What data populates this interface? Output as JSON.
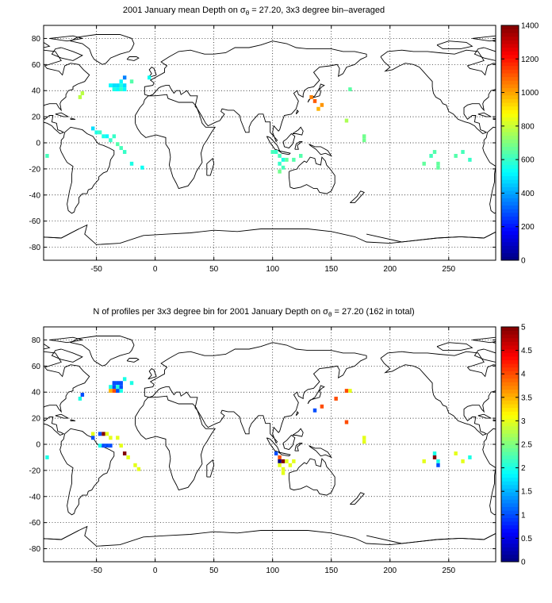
{
  "chart_data": [
    {
      "type": "heatmap",
      "title_prefix": "2001 January mean Depth on ",
      "title_sigma": "σ",
      "title_sub": "θ",
      "title_suffix": " = 27.20, 3x3 degree bin–averaged",
      "xlim": [
        -95,
        290
      ],
      "ylim": [
        -90,
        90
      ],
      "xticks": [
        "-50",
        "0",
        "50",
        "100",
        "150",
        "200",
        "250"
      ],
      "yticks": [
        "80",
        "60",
        "40",
        "20",
        "0",
        "-20",
        "-40",
        "-60",
        "-80"
      ],
      "grid": true,
      "bin_size_deg": 3,
      "colorbar": {
        "min": 0,
        "max": 1400,
        "ticks": [
          "1400",
          "1200",
          "1000",
          "800",
          "600",
          "400",
          "200",
          "0"
        ]
      },
      "bins": [
        {
          "lon": -92,
          "lat": -10,
          "value": 620
        },
        {
          "lon": -64,
          "lat": 35,
          "value": 780
        },
        {
          "lon": -62,
          "lat": 38,
          "value": 780
        },
        {
          "lon": -38,
          "lat": 44,
          "value": 520
        },
        {
          "lon": -35,
          "lat": 44,
          "value": 480
        },
        {
          "lon": -35,
          "lat": 41,
          "value": 560
        },
        {
          "lon": -32,
          "lat": 44,
          "value": 480
        },
        {
          "lon": -32,
          "lat": 41,
          "value": 520
        },
        {
          "lon": -29,
          "lat": 47,
          "value": 520
        },
        {
          "lon": -29,
          "lat": 44,
          "value": 560
        },
        {
          "lon": -29,
          "lat": 41,
          "value": 600
        },
        {
          "lon": -26,
          "lat": 50,
          "value": 350
        },
        {
          "lon": -26,
          "lat": 44,
          "value": 480
        },
        {
          "lon": -26,
          "lat": 41,
          "value": 520
        },
        {
          "lon": -20,
          "lat": 47,
          "value": 640
        },
        {
          "lon": -5,
          "lat": 50,
          "value": 540
        },
        {
          "lon": -53,
          "lat": 11,
          "value": 480
        },
        {
          "lon": -50,
          "lat": 8,
          "value": 560
        },
        {
          "lon": -47,
          "lat": 8,
          "value": 600
        },
        {
          "lon": -44,
          "lat": 5,
          "value": 560
        },
        {
          "lon": -41,
          "lat": 5,
          "value": 520
        },
        {
          "lon": -38,
          "lat": 2,
          "value": 600
        },
        {
          "lon": -35,
          "lat": 5,
          "value": 600
        },
        {
          "lon": -32,
          "lat": -1,
          "value": 640
        },
        {
          "lon": -29,
          "lat": -4,
          "value": 620
        },
        {
          "lon": -26,
          "lat": -7,
          "value": 600
        },
        {
          "lon": -20,
          "lat": -16,
          "value": 560
        },
        {
          "lon": -11,
          "lat": -19,
          "value": 540
        },
        {
          "lon": 133,
          "lat": 35,
          "value": 1050
        },
        {
          "lon": 136,
          "lat": 32,
          "value": 1100
        },
        {
          "lon": 139,
          "lat": 26,
          "value": 980
        },
        {
          "lon": 142,
          "lat": 29,
          "value": 1020
        },
        {
          "lon": 166,
          "lat": 41,
          "value": 650
        },
        {
          "lon": 163,
          "lat": 17,
          "value": 760
        },
        {
          "lon": 178,
          "lat": 5,
          "value": 680
        },
        {
          "lon": 178,
          "lat": 2,
          "value": 680
        },
        {
          "lon": 100,
          "lat": -7,
          "value": 620
        },
        {
          "lon": 103,
          "lat": -7,
          "value": 600
        },
        {
          "lon": 106,
          "lat": -10,
          "value": 620
        },
        {
          "lon": 109,
          "lat": -13,
          "value": 560
        },
        {
          "lon": 106,
          "lat": -16,
          "value": 600
        },
        {
          "lon": 109,
          "lat": -19,
          "value": 620
        },
        {
          "lon": 106,
          "lat": -22,
          "value": 680
        },
        {
          "lon": 112,
          "lat": -13,
          "value": 660
        },
        {
          "lon": 118,
          "lat": -13,
          "value": 640
        },
        {
          "lon": 124,
          "lat": -10,
          "value": 640
        },
        {
          "lon": 229,
          "lat": -16,
          "value": 660
        },
        {
          "lon": 235,
          "lat": -10,
          "value": 620
        },
        {
          "lon": 238,
          "lat": -7,
          "value": 640
        },
        {
          "lon": 241,
          "lat": -16,
          "value": 660
        },
        {
          "lon": 241,
          "lat": -19,
          "value": 660
        },
        {
          "lon": 256,
          "lat": -10,
          "value": 640
        },
        {
          "lon": 262,
          "lat": -7,
          "value": 620
        },
        {
          "lon": 268,
          "lat": -13,
          "value": 600
        }
      ]
    },
    {
      "type": "heatmap",
      "title_prefix": "N of profiles per 3x3 degree bin for 2001 January Depth on ",
      "title_sigma": "σ",
      "title_sub": "θ",
      "title_suffix": " = 27.20 (162 in total)",
      "xlim": [
        -95,
        290
      ],
      "ylim": [
        -90,
        90
      ],
      "xticks": [
        "-50",
        "0",
        "50",
        "100",
        "150",
        "200",
        "250"
      ],
      "yticks": [
        "80",
        "60",
        "40",
        "20",
        "0",
        "-20",
        "-40",
        "-60",
        "-80"
      ],
      "grid": true,
      "bin_size_deg": 3,
      "colorbar": {
        "min": 0,
        "max": 5,
        "ticks": [
          "5",
          "4.5",
          "4",
          "3.5",
          "3",
          "2.5",
          "2",
          "1.5",
          "1",
          "0.5",
          "0"
        ]
      },
      "bins": [
        {
          "lon": -92,
          "lat": -10,
          "value": 2
        },
        {
          "lon": -64,
          "lat": 35,
          "value": 2
        },
        {
          "lon": -62,
          "lat": 38,
          "value": 1
        },
        {
          "lon": -38,
          "lat": 44,
          "value": 2
        },
        {
          "lon": -38,
          "lat": 41,
          "value": 3.5
        },
        {
          "lon": -35,
          "lat": 47,
          "value": 1
        },
        {
          "lon": -35,
          "lat": 44,
          "value": 1
        },
        {
          "lon": -35,
          "lat": 41,
          "value": 4
        },
        {
          "lon": -32,
          "lat": 47,
          "value": 1
        },
        {
          "lon": -32,
          "lat": 44,
          "value": 2
        },
        {
          "lon": -32,
          "lat": 41,
          "value": 1
        },
        {
          "lon": -29,
          "lat": 47,
          "value": 1
        },
        {
          "lon": -29,
          "lat": 44,
          "value": 1
        },
        {
          "lon": -29,
          "lat": 41,
          "value": 2
        },
        {
          "lon": -26,
          "lat": 50,
          "value": 2
        },
        {
          "lon": -20,
          "lat": 47,
          "value": 2
        },
        {
          "lon": -53,
          "lat": 8,
          "value": 3
        },
        {
          "lon": -53,
          "lat": 5,
          "value": 1
        },
        {
          "lon": -47,
          "lat": 8,
          "value": 1
        },
        {
          "lon": -44,
          "lat": 8,
          "value": 5
        },
        {
          "lon": -41,
          "lat": 8,
          "value": 3
        },
        {
          "lon": -38,
          "lat": 5,
          "value": 3
        },
        {
          "lon": -32,
          "lat": 5,
          "value": 3
        },
        {
          "lon": -47,
          "lat": -1,
          "value": 2
        },
        {
          "lon": -44,
          "lat": -1,
          "value": 1
        },
        {
          "lon": -41,
          "lat": -1,
          "value": 1
        },
        {
          "lon": -38,
          "lat": -1,
          "value": 1
        },
        {
          "lon": -29,
          "lat": -1,
          "value": 3
        },
        {
          "lon": -26,
          "lat": -7,
          "value": 5
        },
        {
          "lon": -23,
          "lat": -10,
          "value": 3
        },
        {
          "lon": -17,
          "lat": -16,
          "value": 3
        },
        {
          "lon": -14,
          "lat": -19,
          "value": 3
        },
        {
          "lon": 136,
          "lat": 26,
          "value": 1
        },
        {
          "lon": 142,
          "lat": 29,
          "value": 4
        },
        {
          "lon": 154,
          "lat": 35,
          "value": 4
        },
        {
          "lon": 163,
          "lat": 41,
          "value": 4
        },
        {
          "lon": 166,
          "lat": 41,
          "value": 3
        },
        {
          "lon": 163,
          "lat": 17,
          "value": 4
        },
        {
          "lon": 178,
          "lat": 5,
          "value": 3
        },
        {
          "lon": 178,
          "lat": 2,
          "value": 3
        },
        {
          "lon": 103,
          "lat": -7,
          "value": 1
        },
        {
          "lon": 106,
          "lat": -10,
          "value": 4
        },
        {
          "lon": 106,
          "lat": -13,
          "value": 0
        },
        {
          "lon": 109,
          "lat": -13,
          "value": 5
        },
        {
          "lon": 112,
          "lat": -13,
          "value": 3
        },
        {
          "lon": 106,
          "lat": -16,
          "value": 3
        },
        {
          "lon": 109,
          "lat": -19,
          "value": 3
        },
        {
          "lon": 109,
          "lat": -22,
          "value": 3
        },
        {
          "lon": 115,
          "lat": -16,
          "value": 3
        },
        {
          "lon": 118,
          "lat": -13,
          "value": 3
        },
        {
          "lon": 229,
          "lat": -13,
          "value": 3
        },
        {
          "lon": 238,
          "lat": -7,
          "value": 2
        },
        {
          "lon": 238,
          "lat": -10,
          "value": 5
        },
        {
          "lon": 241,
          "lat": -13,
          "value": 2
        },
        {
          "lon": 241,
          "lat": -16,
          "value": 1
        },
        {
          "lon": 256,
          "lat": -7,
          "value": 3
        },
        {
          "lon": 262,
          "lat": -13,
          "value": 3
        },
        {
          "lon": 268,
          "lat": -10,
          "value": 2
        }
      ]
    }
  ]
}
